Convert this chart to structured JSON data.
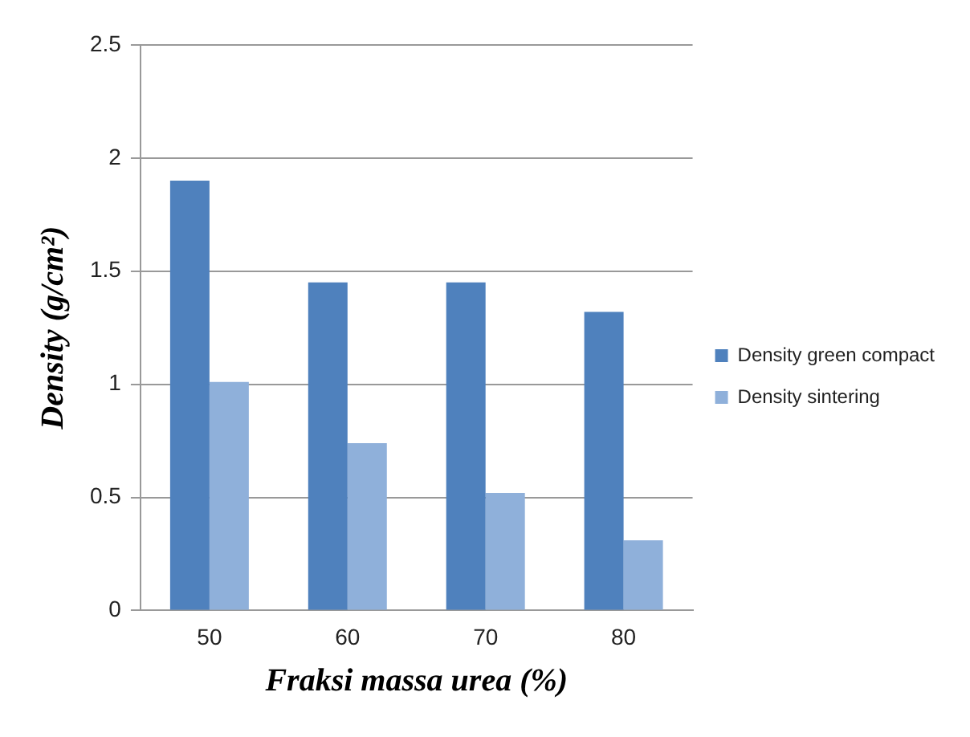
{
  "chart_data": {
    "type": "bar",
    "xlabel": "Fraksi massa urea (%)",
    "ylabel": "Density (g/cm²)",
    "categories": [
      "50",
      "60",
      "70",
      "80"
    ],
    "series": [
      {
        "name": "Density green compact",
        "color": "#4f81bd",
        "values": [
          1.9,
          1.45,
          1.45,
          1.32
        ]
      },
      {
        "name": "Density sintering",
        "color": "#8fb0da",
        "values": [
          1.01,
          0.74,
          0.52,
          0.31
        ]
      }
    ],
    "ylim": [
      0,
      2.5
    ],
    "yticks": [
      0,
      0.5,
      1,
      1.5,
      2,
      2.5
    ],
    "grid": "y",
    "legend": "right"
  }
}
